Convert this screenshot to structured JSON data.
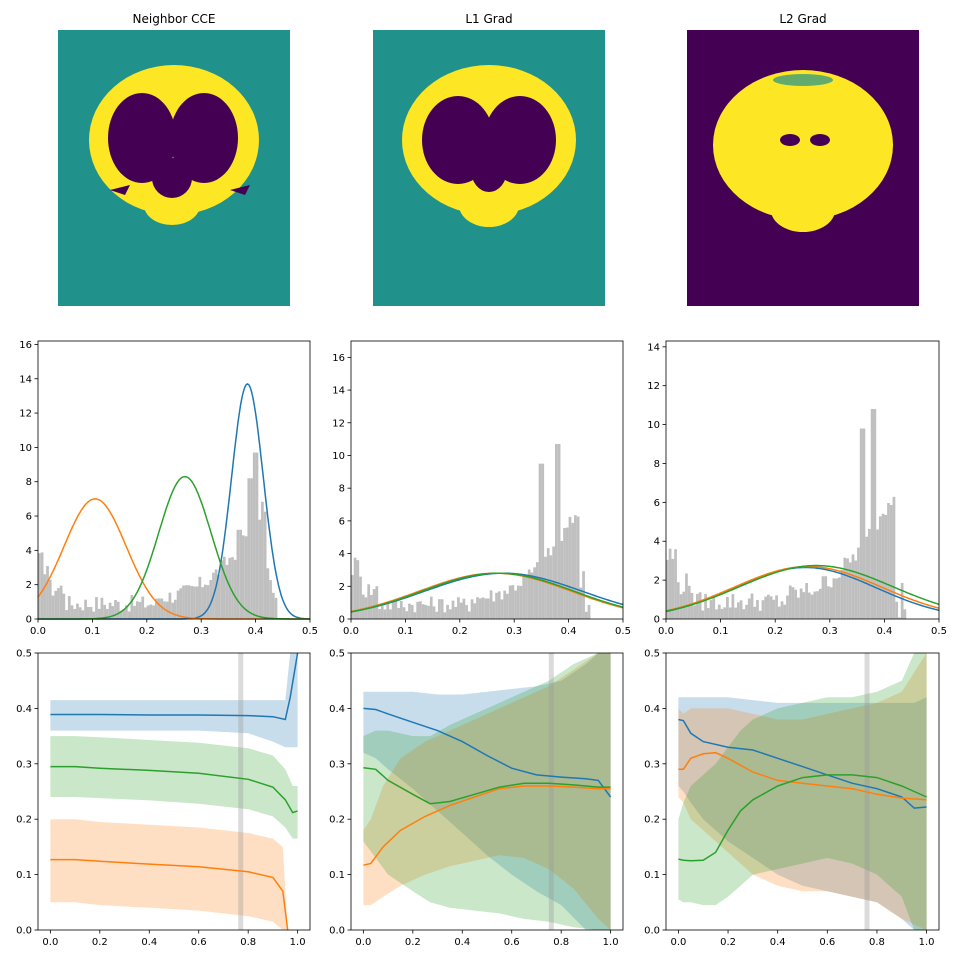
{
  "titles": [
    "Neighbor CCE",
    "L1 Grad",
    "L2 Grad"
  ],
  "colors": {
    "c0": "#1f77b4",
    "c1": "#ff7f0e",
    "c2": "#2ca02c",
    "hist": "#bfbfbf",
    "viridis_dark": "#440154",
    "viridis_mid": "#21918c",
    "viridis_bright": "#fde725"
  },
  "chart_data": [
    {
      "type": "image",
      "title": "Neighbor CCE",
      "description_colors": {
        "background": "viridis_mid",
        "brain": "viridis_bright",
        "white_matter": "viridis_dark"
      }
    },
    {
      "type": "image",
      "title": "L1 Grad",
      "description_colors": {
        "background": "viridis_mid",
        "brain": "viridis_bright",
        "white_matter": "viridis_dark"
      }
    },
    {
      "type": "image",
      "title": "L2 Grad",
      "description_colors": {
        "background": "viridis_dark",
        "brain": "viridis_bright",
        "edges": "viridis_mid"
      }
    },
    {
      "type": "histogram+line",
      "xlim": [
        0,
        0.5
      ],
      "ylim": [
        0,
        16.2
      ],
      "xticks": [
        "0.0",
        "0.1",
        "0.2",
        "0.3",
        "0.4",
        "0.5"
      ],
      "yticks": [
        "0",
        "2",
        "4",
        "6",
        "8",
        "10",
        "12",
        "14",
        "16"
      ],
      "hist_peaks": [
        [
          0.37,
          5.2
        ],
        [
          0.39,
          8.2
        ],
        [
          0.4,
          9.7
        ]
      ],
      "gaussians": [
        {
          "mu": 0.385,
          "sigma": 0.029,
          "peak": 13.7
        },
        {
          "mu": 0.105,
          "sigma": 0.057,
          "peak": 7.0
        },
        {
          "mu": 0.27,
          "sigma": 0.048,
          "peak": 8.3
        }
      ]
    },
    {
      "type": "histogram+line",
      "xlim": [
        0,
        0.5
      ],
      "ylim": [
        0,
        17
      ],
      "xticks": [
        "0.0",
        "0.1",
        "0.2",
        "0.3",
        "0.4",
        "0.5"
      ],
      "yticks": [
        "0",
        "2",
        "4",
        "6",
        "8",
        "10",
        "12",
        "14",
        "16"
      ],
      "hist_peaks": [
        [
          0.35,
          9.5
        ],
        [
          0.38,
          10.7
        ]
      ],
      "gaussians": [
        {
          "mu": 0.28,
          "sigma": 0.145,
          "peak": 2.8
        },
        {
          "mu": 0.265,
          "sigma": 0.14,
          "peak": 2.8
        },
        {
          "mu": 0.27,
          "sigma": 0.14,
          "peak": 2.8
        }
      ]
    },
    {
      "type": "histogram+line",
      "xlim": [
        0,
        0.5
      ],
      "ylim": [
        0,
        14.3
      ],
      "xticks": [
        "0.0",
        "0.1",
        "0.2",
        "0.3",
        "0.4",
        "0.5"
      ],
      "yticks": [
        "0",
        "2",
        "4",
        "6",
        "8",
        "10",
        "12",
        "14"
      ],
      "hist_peaks": [
        [
          0.36,
          9.8
        ],
        [
          0.38,
          10.8
        ]
      ],
      "gaussians": [
        {
          "mu": 0.255,
          "sigma": 0.13,
          "peak": 2.65
        },
        {
          "mu": 0.26,
          "sigma": 0.135,
          "peak": 2.7
        },
        {
          "mu": 0.275,
          "sigma": 0.14,
          "peak": 2.75
        }
      ]
    },
    {
      "type": "line+band",
      "xlim": [
        -0.05,
        1.05
      ],
      "ylim": [
        0,
        0.5
      ],
      "vline": 0.77,
      "xticks": [
        "0.0",
        "0.2",
        "0.4",
        "0.6",
        "0.8",
        "1.0"
      ],
      "yticks": [
        "0.0",
        "0.1",
        "0.2",
        "0.3",
        "0.4",
        "0.5"
      ],
      "series": [
        {
          "color": "c0",
          "x": [
            0,
            0.2,
            0.4,
            0.6,
            0.8,
            0.9,
            0.95,
            0.97,
            1.0
          ],
          "y": [
            0.389,
            0.389,
            0.388,
            0.388,
            0.387,
            0.385,
            0.38,
            0.42,
            0.5
          ],
          "lo": [
            0.36,
            0.36,
            0.36,
            0.36,
            0.355,
            0.34,
            0.33,
            0.33,
            0.33
          ],
          "hi": [
            0.415,
            0.415,
            0.415,
            0.415,
            0.415,
            0.415,
            0.415,
            0.5,
            0.5
          ]
        },
        {
          "color": "c1",
          "x": [
            0,
            0.1,
            0.2,
            0.4,
            0.6,
            0.8,
            0.9,
            0.94,
            0.96
          ],
          "y": [
            0.127,
            0.127,
            0.124,
            0.119,
            0.114,
            0.105,
            0.095,
            0.07,
            0.0
          ],
          "lo": [
            0.05,
            0.05,
            0.045,
            0.04,
            0.035,
            0.025,
            0.015,
            0.0,
            0.0
          ],
          "hi": [
            0.2,
            0.2,
            0.195,
            0.19,
            0.185,
            0.175,
            0.165,
            0.15,
            0.0
          ]
        },
        {
          "color": "c2",
          "x": [
            0,
            0.1,
            0.2,
            0.4,
            0.6,
            0.8,
            0.9,
            0.95,
            0.98,
            1.0
          ],
          "y": [
            0.295,
            0.295,
            0.292,
            0.288,
            0.283,
            0.272,
            0.258,
            0.235,
            0.212,
            0.215
          ],
          "lo": [
            0.24,
            0.24,
            0.238,
            0.234,
            0.228,
            0.218,
            0.205,
            0.185,
            0.165,
            0.165
          ],
          "hi": [
            0.35,
            0.35,
            0.348,
            0.343,
            0.338,
            0.328,
            0.315,
            0.29,
            0.26,
            0.26
          ]
        }
      ]
    },
    {
      "type": "line+band",
      "xlim": [
        -0.05,
        1.05
      ],
      "ylim": [
        0,
        0.5
      ],
      "vline": 0.76,
      "xticks": [
        "0.0",
        "0.2",
        "0.4",
        "0.6",
        "0.8",
        "1.0"
      ],
      "yticks": [
        "0.0",
        "0.1",
        "0.2",
        "0.3",
        "0.4",
        "0.5"
      ],
      "series": [
        {
          "color": "c0",
          "x": [
            0,
            0.05,
            0.1,
            0.2,
            0.3,
            0.4,
            0.5,
            0.6,
            0.7,
            0.8,
            0.9,
            0.95,
            1.0
          ],
          "y": [
            0.4,
            0.398,
            0.39,
            0.375,
            0.36,
            0.34,
            0.315,
            0.292,
            0.28,
            0.276,
            0.273,
            0.27,
            0.24
          ],
          "lo": [
            0.32,
            0.31,
            0.29,
            0.255,
            0.215,
            0.175,
            0.135,
            0.1,
            0.07,
            0.045,
            0.0,
            0.0,
            0.0
          ],
          "hi": [
            0.43,
            0.43,
            0.43,
            0.43,
            0.425,
            0.425,
            0.43,
            0.435,
            0.44,
            0.45,
            0.48,
            0.5,
            0.5
          ]
        },
        {
          "color": "c1",
          "x": [
            0,
            0.03,
            0.08,
            0.15,
            0.25,
            0.35,
            0.45,
            0.55,
            0.65,
            0.75,
            0.85,
            0.95,
            1.0
          ],
          "y": [
            0.117,
            0.12,
            0.15,
            0.18,
            0.205,
            0.225,
            0.24,
            0.255,
            0.26,
            0.26,
            0.258,
            0.255,
            0.255
          ],
          "lo": [
            0.045,
            0.045,
            0.06,
            0.08,
            0.1,
            0.115,
            0.125,
            0.135,
            0.13,
            0.11,
            0.075,
            0.02,
            0.0
          ],
          "hi": [
            0.18,
            0.2,
            0.26,
            0.31,
            0.34,
            0.36,
            0.38,
            0.4,
            0.42,
            0.44,
            0.47,
            0.5,
            0.5
          ]
        },
        {
          "color": "c2",
          "x": [
            0,
            0.05,
            0.1,
            0.2,
            0.27,
            0.35,
            0.45,
            0.55,
            0.65,
            0.75,
            0.85,
            0.95,
            1.0
          ],
          "y": [
            0.293,
            0.29,
            0.27,
            0.245,
            0.228,
            0.232,
            0.245,
            0.258,
            0.265,
            0.265,
            0.262,
            0.258,
            0.258
          ],
          "lo": [
            0.16,
            0.13,
            0.1,
            0.07,
            0.05,
            0.04,
            0.035,
            0.03,
            0.02,
            0.015,
            0.005,
            0.0,
            0.0
          ],
          "hi": [
            0.35,
            0.36,
            0.36,
            0.35,
            0.35,
            0.37,
            0.39,
            0.41,
            0.43,
            0.45,
            0.48,
            0.5,
            0.5
          ]
        }
      ]
    },
    {
      "type": "line+band",
      "xlim": [
        -0.05,
        1.05
      ],
      "ylim": [
        0,
        0.5
      ],
      "vline": 0.76,
      "xticks": [
        "0.0",
        "0.2",
        "0.4",
        "0.6",
        "0.8",
        "1.0"
      ],
      "yticks": [
        "0.0",
        "0.1",
        "0.2",
        "0.3",
        "0.4",
        "0.5"
      ],
      "series": [
        {
          "color": "c0",
          "x": [
            0,
            0.02,
            0.05,
            0.1,
            0.2,
            0.3,
            0.4,
            0.5,
            0.6,
            0.7,
            0.8,
            0.9,
            0.95,
            1.0
          ],
          "y": [
            0.38,
            0.378,
            0.355,
            0.34,
            0.33,
            0.325,
            0.31,
            0.295,
            0.28,
            0.265,
            0.255,
            0.24,
            0.22,
            0.222
          ],
          "lo": [
            0.26,
            0.25,
            0.23,
            0.2,
            0.16,
            0.13,
            0.1,
            0.08,
            0.07,
            0.06,
            0.05,
            0.02,
            0.0,
            0.0
          ],
          "hi": [
            0.42,
            0.42,
            0.42,
            0.42,
            0.42,
            0.415,
            0.41,
            0.41,
            0.41,
            0.41,
            0.41,
            0.41,
            0.41,
            0.42
          ]
        },
        {
          "color": "c1",
          "x": [
            0,
            0.02,
            0.05,
            0.1,
            0.15,
            0.2,
            0.3,
            0.4,
            0.5,
            0.6,
            0.7,
            0.8,
            0.9,
            1.0
          ],
          "y": [
            0.29,
            0.29,
            0.31,
            0.318,
            0.32,
            0.31,
            0.285,
            0.27,
            0.265,
            0.26,
            0.255,
            0.245,
            0.238,
            0.235
          ],
          "lo": [
            0.24,
            0.23,
            0.2,
            0.18,
            0.16,
            0.14,
            0.1,
            0.08,
            0.07,
            0.07,
            0.06,
            0.05,
            0.02,
            0.0
          ],
          "hi": [
            0.4,
            0.39,
            0.4,
            0.4,
            0.4,
            0.4,
            0.39,
            0.38,
            0.38,
            0.39,
            0.4,
            0.41,
            0.43,
            0.5
          ]
        },
        {
          "color": "c2",
          "x": [
            0,
            0.02,
            0.05,
            0.1,
            0.15,
            0.2,
            0.25,
            0.3,
            0.4,
            0.5,
            0.6,
            0.7,
            0.8,
            0.9,
            0.95,
            1.0
          ],
          "y": [
            0.128,
            0.126,
            0.125,
            0.126,
            0.14,
            0.18,
            0.215,
            0.235,
            0.26,
            0.275,
            0.28,
            0.28,
            0.275,
            0.26,
            0.25,
            0.24
          ],
          "lo": [
            0.055,
            0.05,
            0.05,
            0.045,
            0.045,
            0.06,
            0.08,
            0.1,
            0.11,
            0.12,
            0.13,
            0.12,
            0.1,
            0.06,
            0.0,
            0.0
          ],
          "hi": [
            0.2,
            0.23,
            0.26,
            0.28,
            0.3,
            0.33,
            0.36,
            0.38,
            0.4,
            0.41,
            0.42,
            0.42,
            0.43,
            0.45,
            0.5,
            0.5
          ]
        }
      ]
    }
  ]
}
